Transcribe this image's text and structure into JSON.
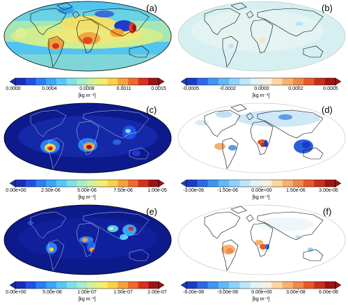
{
  "panels": [
    {
      "label": "(a)",
      "ticks": [
        "0.0000",
        "0.0004",
        "0.0008",
        "0.0011",
        "0.0015"
      ],
      "unit": "[kg m⁻¹]",
      "colorbar_colors": [
        "#1a2db4",
        "#2050e6",
        "#2a7ff5",
        "#3aa5fa",
        "#55c8fa",
        "#7fe0e8",
        "#a8eec8",
        "#d2f29a",
        "#f4ee6a",
        "#fad24a",
        "#f8a23a",
        "#ee6a2a",
        "#d8301e",
        "#a0101a"
      ]
    },
    {
      "label": "(b)",
      "ticks": [
        "-0.0005",
        "-0.0002",
        "0.0000",
        "0.0002",
        "0.0005"
      ],
      "unit": "[kg m⁻¹]",
      "colorbar_colors": [
        "#1a3cc8",
        "#2a6ae6",
        "#3e95f2",
        "#62b8f8",
        "#8ed2fa",
        "#bce6fa",
        "#e0f4f4",
        "#f8f2dc",
        "#fbd8a2",
        "#f8b070",
        "#f28848",
        "#e65a2a",
        "#c8301a",
        "#a01414"
      ]
    },
    {
      "label": "(c)",
      "ticks": [
        "0.00e+00",
        "2.50e-06",
        "5.00e-06",
        "7.50e-06",
        "1.00e-05"
      ],
      "unit": "[kg m⁻¹]",
      "colorbar_colors": [
        "#1a2db4",
        "#2050e6",
        "#2a7ff5",
        "#3aa5fa",
        "#55c8fa",
        "#7fe0e8",
        "#a8eec8",
        "#d2f29a",
        "#f4ee6a",
        "#fad24a",
        "#f8a23a",
        "#ee6a2a",
        "#d8301e",
        "#a0101a"
      ]
    },
    {
      "label": "(d)",
      "ticks": [
        "-3.00e-06",
        "-1.50e-06",
        "0.00e+00",
        "1.50e-06",
        "3.00e-06"
      ],
      "unit": "[kg m⁻¹]",
      "colorbar_colors": [
        "#1a3cc8",
        "#2a6ae6",
        "#3e95f2",
        "#62b8f8",
        "#8ed2fa",
        "#bce6fa",
        "#e0f4f4",
        "#f8f2dc",
        "#fbd8a2",
        "#f8b070",
        "#f28848",
        "#e65a2a",
        "#c8301a",
        "#a01414"
      ]
    },
    {
      "label": "(e)",
      "ticks": [
        "0.00e+00",
        "5.00e-08",
        "1.00e-07",
        "1.50e-07",
        "2.00e-07"
      ],
      "unit": "[kg m⁻¹]",
      "colorbar_colors": [
        "#1a2db4",
        "#2050e6",
        "#2a7ff5",
        "#3aa5fa",
        "#55c8fa",
        "#7fe0e8",
        "#a8eec8",
        "#d2f29a",
        "#f4ee6a",
        "#fad24a",
        "#f8a23a",
        "#ee6a2a",
        "#d8301e",
        "#a0101a"
      ]
    },
    {
      "label": "(f)",
      "ticks": [
        "-6.00e-08",
        "-3.00e-08",
        "0.00e+00",
        "3.00e-08",
        "6.00e-08"
      ],
      "unit": "[kg m⁻¹]",
      "colorbar_colors": [
        "#1a3cc8",
        "#2a6ae6",
        "#3e95f2",
        "#62b8f8",
        "#8ed2fa",
        "#bce6fa",
        "#e0f4f4",
        "#f8f2dc",
        "#fbd8a2",
        "#f8b070",
        "#f28848",
        "#e65a2a",
        "#c8301a",
        "#a01414"
      ]
    }
  ]
}
